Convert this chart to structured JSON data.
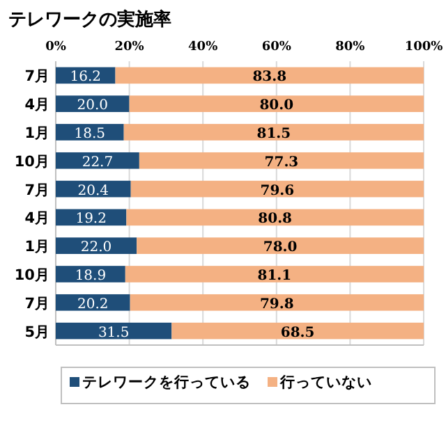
{
  "chart_data": {
    "type": "bar",
    "orientation": "horizontal",
    "stacked": true,
    "title": "テレワークの実施率",
    "categories": [
      "7月",
      "4月",
      "1月",
      "10月",
      "7月",
      "4月",
      "1月",
      "10月",
      "7月",
      "5月"
    ],
    "series": [
      {
        "name": "テレワークを行っている",
        "color": "#1f4e79",
        "values": [
          16.2,
          20.0,
          18.5,
          22.7,
          20.4,
          19.2,
          22.0,
          18.9,
          20.2,
          31.5
        ],
        "value_labels": [
          "16.2",
          "20.0",
          "18.5",
          "22.7",
          "20.4",
          "19.2",
          "22.0",
          "18.9",
          "20.2",
          "31.5"
        ]
      },
      {
        "name": "行っていない",
        "color": "#f4b183",
        "values": [
          83.8,
          80.0,
          81.5,
          77.3,
          79.6,
          80.8,
          78.0,
          81.1,
          79.8,
          68.5
        ],
        "value_labels": [
          "83.8",
          "80.0",
          "81.5",
          "77.3",
          "79.6",
          "80.8",
          "78.0",
          "81.1",
          "79.8",
          "68.5"
        ]
      }
    ],
    "xlim": [
      0,
      100
    ],
    "xticks": [
      {
        "value": 0,
        "label": "0%"
      },
      {
        "value": 20,
        "label": "20%"
      },
      {
        "value": 40,
        "label": "40%"
      },
      {
        "value": 60,
        "label": "60%"
      },
      {
        "value": 80,
        "label": "80%"
      },
      {
        "value": 100,
        "label": "100%"
      }
    ],
    "grid": "x",
    "legend": "bottom"
  }
}
